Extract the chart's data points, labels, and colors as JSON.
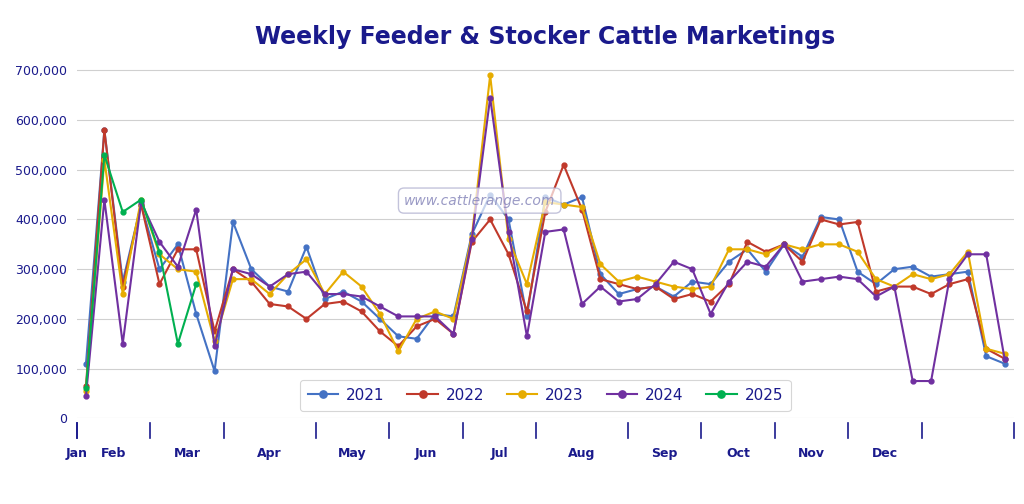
{
  "title": "Weekly Feeder & Stocker Cattle Marketings",
  "title_color": "#1a1a8c",
  "title_fontsize": 17,
  "title_fontweight": "bold",
  "ylim": [
    0,
    730000
  ],
  "yticks": [
    0,
    100000,
    200000,
    300000,
    400000,
    500000,
    600000,
    700000
  ],
  "watermark": "www.cattlerange.com",
  "background_color": "#ffffff",
  "plot_bg_color": "#ffffff",
  "grid_color": "#d0d0d0",
  "series": {
    "2021": {
      "color": "#4472c4",
      "values": [
        110000,
        580000,
        275000,
        430000,
        300000,
        350000,
        210000,
        95000,
        395000,
        300000,
        265000,
        255000,
        345000,
        240000,
        255000,
        235000,
        200000,
        165000,
        160000,
        210000,
        205000,
        370000,
        450000,
        400000,
        205000,
        445000,
        430000,
        445000,
        290000,
        250000,
        260000,
        265000,
        245000,
        275000,
        270000,
        315000,
        340000,
        295000,
        350000,
        325000,
        405000,
        400000,
        295000,
        270000,
        300000,
        305000,
        285000,
        290000,
        295000,
        125000,
        110000
      ]
    },
    "2022": {
      "color": "#c0392b",
      "values": [
        65000,
        580000,
        265000,
        430000,
        270000,
        340000,
        340000,
        175000,
        300000,
        275000,
        230000,
        225000,
        200000,
        230000,
        235000,
        215000,
        175000,
        145000,
        185000,
        200000,
        170000,
        355000,
        400000,
        330000,
        215000,
        415000,
        510000,
        420000,
        280000,
        270000,
        260000,
        265000,
        240000,
        250000,
        235000,
        270000,
        355000,
        335000,
        350000,
        315000,
        400000,
        390000,
        395000,
        255000,
        265000,
        265000,
        250000,
        270000,
        280000,
        140000,
        120000
      ]
    },
    "2023": {
      "color": "#e6ac00",
      "values": [
        55000,
        520000,
        250000,
        440000,
        330000,
        300000,
        295000,
        155000,
        280000,
        280000,
        250000,
        290000,
        320000,
        250000,
        295000,
        265000,
        210000,
        135000,
        200000,
        215000,
        200000,
        365000,
        690000,
        360000,
        270000,
        435000,
        430000,
        425000,
        310000,
        275000,
        285000,
        275000,
        265000,
        260000,
        265000,
        340000,
        340000,
        330000,
        350000,
        340000,
        350000,
        350000,
        335000,
        280000,
        265000,
        290000,
        280000,
        290000,
        335000,
        140000,
        130000
      ]
    },
    "2024": {
      "color": "#7030a0",
      "values": [
        45000,
        440000,
        150000,
        435000,
        355000,
        305000,
        420000,
        145000,
        300000,
        290000,
        265000,
        290000,
        295000,
        250000,
        250000,
        245000,
        225000,
        205000,
        205000,
        205000,
        170000,
        360000,
        645000,
        375000,
        165000,
        375000,
        380000,
        230000,
        265000,
        235000,
        240000,
        270000,
        315000,
        300000,
        210000,
        275000,
        315000,
        305000,
        350000,
        275000,
        280000,
        285000,
        280000,
        245000,
        265000,
        75000,
        75000,
        280000,
        330000,
        330000,
        120000
      ]
    },
    "2025": {
      "color": "#00b050",
      "values": [
        60000,
        530000,
        415000,
        440000,
        335000,
        150000,
        270000,
        null,
        null,
        null,
        null,
        null,
        null,
        null,
        null,
        null,
        null,
        null,
        null,
        null,
        null,
        null,
        null,
        null,
        null,
        null,
        null,
        null,
        null,
        null,
        null,
        null,
        null,
        null,
        null,
        null,
        null,
        null,
        null,
        null,
        null,
        null,
        null,
        null,
        null,
        null,
        null,
        null,
        null,
        null,
        null
      ]
    }
  },
  "n_weeks": 51,
  "months": [
    "Jan",
    "Feb",
    "Mar",
    "Apr",
    "May",
    "Jun",
    "Jul",
    "Aug",
    "Sep",
    "Oct",
    "Nov",
    "Dec"
  ],
  "month_week_starts": [
    0,
    4,
    8,
    13,
    17,
    21,
    25,
    30,
    34,
    38,
    42,
    46
  ],
  "tick_label_color": "#1a1a8c",
  "legend_years": [
    "2021",
    "2022",
    "2023",
    "2024",
    "2025"
  ]
}
